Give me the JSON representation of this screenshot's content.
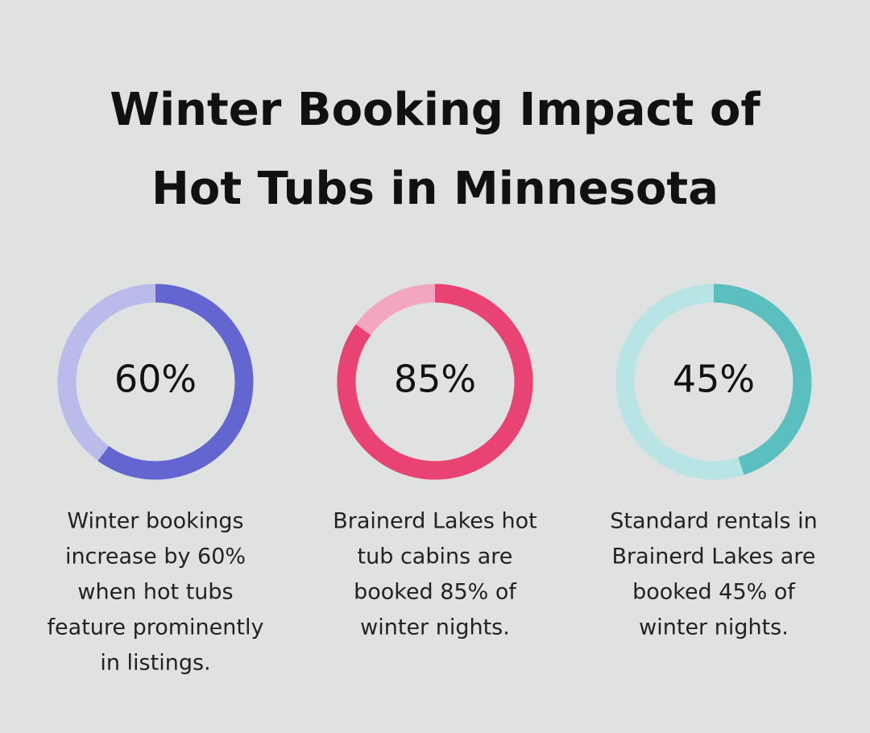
{
  "title": [
    "Winter Booking Impact of",
    "Hot Tubs in Minnesota"
  ],
  "chart_data": [
    {
      "type": "donut",
      "values": [
        60
      ],
      "value_labels": [
        "60%"
      ],
      "color": "#6366d1",
      "track_color": "#b9bbea",
      "caption": [
        "Winter bookings",
        "increase by 60%",
        "when hot tubs",
        "feature prominently",
        "in listings."
      ]
    },
    {
      "type": "donut",
      "values": [
        85
      ],
      "value_labels": [
        "85%"
      ],
      "color": "#e84373",
      "track_color": "#f2a7bf",
      "caption": [
        "Brainerd Lakes hot",
        "tub cabins are",
        "booked 85% of",
        "winter nights."
      ]
    },
    {
      "type": "donut",
      "values": [
        45
      ],
      "value_labels": [
        "45%"
      ],
      "color": "#5bbfc0",
      "track_color": "#b9e4e6",
      "caption": [
        "Standard rentals in",
        "Brainerd Lakes are",
        "booked 45% of",
        "winter nights."
      ]
    }
  ]
}
